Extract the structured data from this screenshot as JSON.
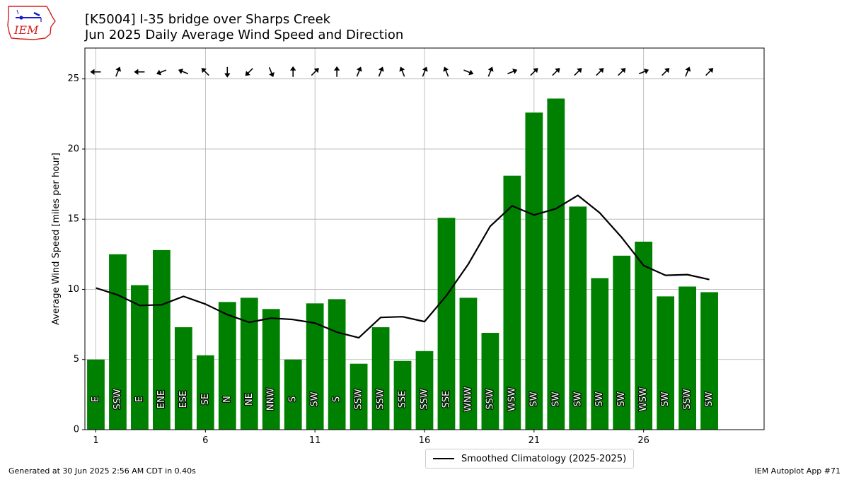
{
  "header": {
    "title_line1": "[K5004] I-35 bridge over Sharps Creek",
    "title_line2": "Jun 2025 Daily Average Wind Speed and Direction",
    "logo_text": "IEM"
  },
  "footer": {
    "generated": "Generated at 30 Jun 2025 2:56 AM CDT in 0.40s",
    "app": "IEM Autoplot App #71"
  },
  "colors": {
    "bar": "#008000",
    "line": "#000000",
    "grid": "#b0b0b0",
    "logo": "#d42020"
  },
  "chart_data": {
    "type": "bar",
    "title": "[K5004] I-35 bridge over Sharps Creek",
    "subtitle": "Jun 2025 Daily Average Wind Speed and Direction",
    "xlabel": "",
    "ylabel": "Average Wind Speed [miles per hour]",
    "x": [
      1,
      2,
      3,
      4,
      5,
      6,
      7,
      8,
      9,
      10,
      11,
      12,
      13,
      14,
      15,
      16,
      17,
      18,
      19,
      20,
      21,
      22,
      23,
      24,
      25,
      26,
      27,
      28,
      29
    ],
    "xlim": [
      0.5,
      31.5
    ],
    "ylim": [
      0,
      27.2
    ],
    "xticks": [
      1,
      6,
      11,
      16,
      21,
      26
    ],
    "yticks": [
      0,
      5,
      10,
      15,
      20,
      25
    ],
    "grid": true,
    "legend_placement": "bottom-center",
    "series": [
      {
        "type": "bar",
        "values": [
          5.0,
          12.5,
          10.3,
          12.8,
          7.3,
          5.3,
          9.1,
          9.4,
          8.6,
          5.0,
          9.0,
          9.3,
          4.7,
          7.3,
          4.9,
          5.6,
          15.1,
          9.4,
          6.9,
          18.1,
          22.6,
          23.6,
          15.9,
          10.8,
          12.4,
          13.4,
          9.5,
          10.2,
          9.8
        ],
        "direction_labels": [
          "E",
          "SSW",
          "E",
          "ENE",
          "ESE",
          "SE",
          "N",
          "NE",
          "NNW",
          "S",
          "SW",
          "S",
          "SSW",
          "SSW",
          "SSE",
          "SSW",
          "SSE",
          "WNW",
          "SSW",
          "WSW",
          "SW",
          "SW",
          "SW",
          "SW",
          "SW",
          "WSW",
          "SW",
          "SSW",
          "SW"
        ],
        "direction_deg": [
          90,
          202,
          90,
          68,
          112,
          135,
          0,
          45,
          338,
          180,
          225,
          180,
          202,
          202,
          158,
          202,
          158,
          292,
          202,
          248,
          225,
          225,
          225,
          225,
          225,
          248,
          225,
          202,
          225
        ]
      },
      {
        "type": "line",
        "name": "Smoothed Climatology (2025-2025)",
        "values": [
          10.1,
          9.6,
          8.85,
          8.9,
          9.5,
          8.95,
          8.2,
          7.65,
          7.95,
          7.85,
          7.6,
          6.95,
          6.55,
          8.0,
          8.05,
          7.7,
          9.55,
          11.8,
          14.5,
          15.95,
          15.3,
          15.75,
          16.7,
          15.45,
          13.7,
          11.7,
          11.0,
          11.05,
          10.7
        ]
      }
    ]
  }
}
